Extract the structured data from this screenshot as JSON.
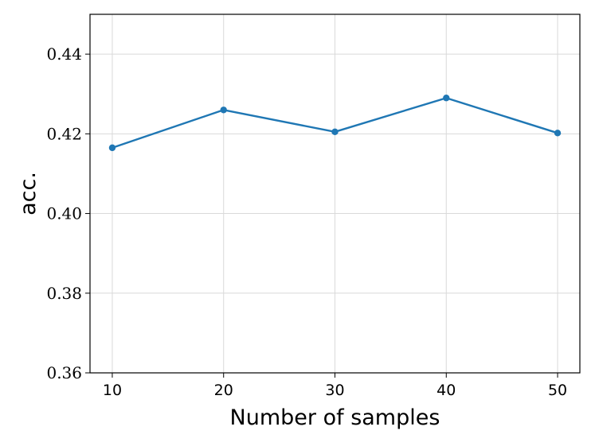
{
  "chart_data": {
    "type": "line",
    "title": "",
    "xlabel": "Number of samples",
    "ylabel": "acc.",
    "x": [
      10,
      20,
      30,
      40,
      50
    ],
    "series": [
      {
        "values": [
          0.4165,
          0.426,
          0.4205,
          0.429,
          0.4202
        ],
        "color": "#1f77b4",
        "marker": "circle"
      }
    ],
    "x_ticks": [
      10,
      20,
      30,
      40,
      50
    ],
    "x_tick_labels": [
      "10",
      "20",
      "30",
      "40",
      "50"
    ],
    "y_ticks": [
      0.36,
      0.38,
      0.4,
      0.42,
      0.44
    ],
    "y_tick_labels": [
      "0.36",
      "0.38",
      "0.40",
      "0.42",
      "0.44"
    ],
    "xlim": [
      8,
      52
    ],
    "ylim": [
      0.36,
      0.45
    ],
    "grid": true,
    "legend": "none"
  }
}
